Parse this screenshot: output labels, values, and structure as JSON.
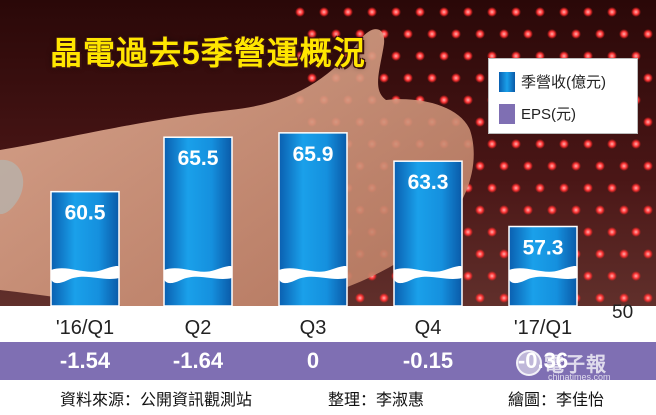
{
  "title": "晶電過去5季營運概況",
  "legend": {
    "revenue_label": "季營收(億元)",
    "eps_label": "EPS(元)"
  },
  "colors": {
    "bar_top": "#1594e0",
    "bar_bottom": "#0a63b8",
    "eps_band": "#7f6fb3",
    "title": "#ffe600"
  },
  "chart_data": {
    "type": "bar",
    "title": "晶電過去5季營運概況",
    "categories": [
      "'16/Q1",
      "Q2",
      "Q3",
      "Q4",
      "'17/Q1"
    ],
    "series": [
      {
        "name": "季營收(億元)",
        "values": [
          60.5,
          65.5,
          65.9,
          63.3,
          57.3
        ]
      },
      {
        "name": "EPS(元)",
        "values": [
          -1.54,
          -1.64,
          0,
          -0.15,
          -0.36
        ]
      }
    ],
    "eps_labels": [
      "-1.54",
      "-1.64",
      "0",
      "-0.15",
      "-0.36"
    ],
    "value_labels": [
      "60.5",
      "65.5",
      "65.9",
      "63.3",
      "57.3"
    ],
    "y_baseline_label": "50",
    "ylim": [
      50,
      68
    ]
  },
  "credits": {
    "source": "資料來源：公開資訊觀測站",
    "editor": "整理：李淑惠",
    "artist": "繪圖：李佳怡"
  },
  "watermark": {
    "name": "電子報",
    "site": "chinatimes.com"
  }
}
